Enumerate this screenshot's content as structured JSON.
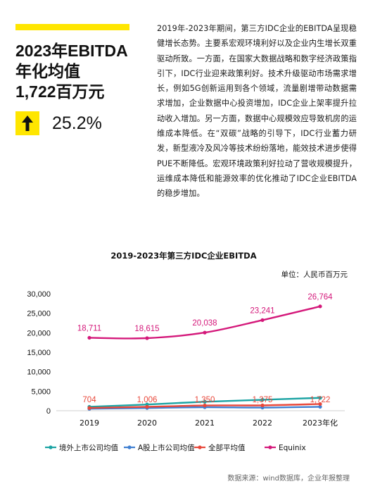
{
  "header": {
    "headline_line1": "2023年EBITDA",
    "headline_line2": "年化均值",
    "headline_line3": "1,722百万元",
    "growth_value": "25.2%",
    "growth_icon": "arrow-up-icon"
  },
  "body_text": "2019年-2023年期间，第三方IDC企业的EBITDA呈现稳健增长态势。主要系宏观环境利好以及企业内生增长双重驱动所致。一方面，在国家大数据战略和数字经济政策指引下，IDC行业迎来政策利好。技术升级驱动市场需求增长，例如5G创新运用到各个领域，流量剧增带动数据需求增加，企业数据中心投资增加，IDC企业上架率提升拉动收入增加。另一方面，数据中心规模效应导致机房的运维成本降低。在“双碳”战略的引导下，IDC行业蓄力研发，新型液冷及风冷等技术纷纷落地，能效技术进步使得PUE不断降低。宏观环境政策利好拉动了营收规模提升，运维成本降低和能源效率的优化推动了IDC企业EBITDA的稳步增加。",
  "source": "数据来源：wind数据库，企业年报整理",
  "colors": {
    "accent": "#FFE600",
    "overseas": "#1BA3A3",
    "a_share": "#3F7FD1",
    "overall": "#E8473A",
    "equinix": "#D4187A"
  },
  "chart_data": {
    "type": "line",
    "title": "2019-2023年第三方IDC企业EBITDA",
    "unit": "单位：人民币百万元",
    "categories": [
      "2019",
      "2020",
      "2021",
      "2022",
      "2023年化"
    ],
    "ylim": [
      0,
      30000
    ],
    "yticks": [
      "0",
      "5,000",
      "10,000",
      "15,000",
      "20,000",
      "25,000",
      "30,000"
    ],
    "grid": false,
    "legend_position": "bottom",
    "series": [
      {
        "name": "境外上市公司均值",
        "values": [
          1000,
          1600,
          2300,
          2800,
          3300
        ]
      },
      {
        "name": "A股上市公司均值",
        "values": [
          500,
          700,
          900,
          800,
          1000
        ]
      },
      {
        "name": "全部平均值",
        "values": [
          704,
          1006,
          1350,
          1375,
          1722
        ],
        "labels": [
          "704",
          "1,006",
          "1,350",
          "1,375",
          "1,722"
        ]
      },
      {
        "name": "Equinix",
        "values": [
          18711,
          18615,
          20038,
          23241,
          26764
        ],
        "labels": [
          "18,711",
          "18,615",
          "20,038",
          "23,241",
          "26,764"
        ]
      }
    ]
  }
}
